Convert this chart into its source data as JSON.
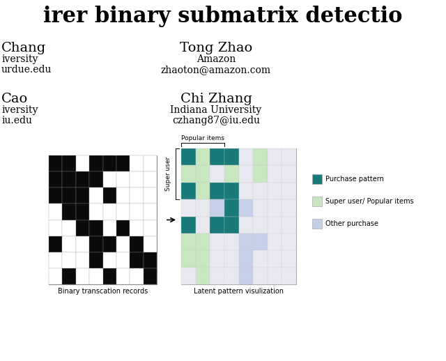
{
  "background_color": "#ffffff",
  "binary_matrix": [
    [
      1,
      1,
      0,
      1,
      1,
      1,
      0,
      0
    ],
    [
      1,
      1,
      1,
      1,
      0,
      0,
      0,
      0
    ],
    [
      1,
      1,
      1,
      0,
      1,
      0,
      0,
      0
    ],
    [
      0,
      1,
      1,
      0,
      0,
      0,
      0,
      0
    ],
    [
      0,
      0,
      1,
      1,
      0,
      1,
      0,
      0
    ],
    [
      1,
      0,
      0,
      1,
      1,
      0,
      1,
      0
    ],
    [
      0,
      0,
      0,
      1,
      0,
      0,
      1,
      1
    ],
    [
      0,
      1,
      0,
      0,
      1,
      0,
      0,
      1
    ]
  ],
  "color_dark_teal": "#1a7a7a",
  "color_light_green": "#c8e6c0",
  "color_light_blue": "#c5cfe8",
  "color_light_gray": "#e8e8f0",
  "latent_matrix": [
    [
      "teal",
      "green",
      "teal",
      "teal",
      "white",
      "green",
      "white",
      "white"
    ],
    [
      "green",
      "green",
      "white",
      "green",
      "white",
      "green",
      "white",
      "white"
    ],
    [
      "teal",
      "green",
      "teal",
      "teal",
      "white",
      "white",
      "white",
      "white"
    ],
    [
      "white",
      "white",
      "blue",
      "teal",
      "blue",
      "white",
      "white",
      "white"
    ],
    [
      "teal",
      "white",
      "teal",
      "teal",
      "white",
      "white",
      "white",
      "white"
    ],
    [
      "green",
      "green",
      "white",
      "white",
      "blue",
      "blue",
      "white",
      "white"
    ],
    [
      "green",
      "green",
      "white",
      "white",
      "blue",
      "white",
      "white",
      "white"
    ],
    [
      "white",
      "green",
      "white",
      "white",
      "blue",
      "white",
      "white",
      "white"
    ]
  ],
  "legend_items": [
    {
      "label": "Purchase pattern",
      "color": "#1a7a7a"
    },
    {
      "label": "Super user/ Popular items",
      "color": "#c8e6c0"
    },
    {
      "label": "Other purchase",
      "color": "#c5cfe8"
    }
  ],
  "label_caption_left": "Binary transcation records",
  "label_caption_right": "Latent pattern visulization",
  "label_popular": "Popular items",
  "label_super": "Super user",
  "title_fontsize": 22,
  "author_name_fontsize": 14,
  "author_detail_fontsize": 10,
  "caption_fontsize": 7,
  "annotation_fontsize": 6.5
}
